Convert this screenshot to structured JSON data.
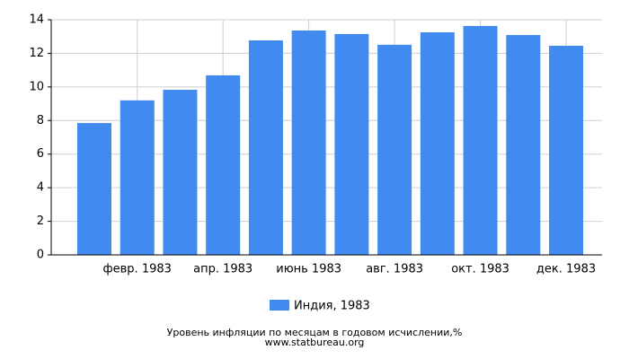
{
  "chart_data": {
    "type": "bar",
    "title": "Уровень инфляции по месяцам в годовом исчислении,%",
    "source": "www.statbureau.org",
    "categories": [
      null,
      "февр. 1983",
      null,
      "апр. 1983",
      null,
      "июнь 1983",
      null,
      "авг. 1983",
      null,
      "окт. 1983",
      null,
      "дек. 1983"
    ],
    "series": [
      {
        "name": "Индия, 1983",
        "color": "#418bf0",
        "values": [
          7.85,
          9.2,
          9.83,
          10.69,
          12.77,
          13.36,
          13.15,
          12.51,
          13.25,
          13.63,
          13.09,
          12.45
        ]
      }
    ],
    "ylim": [
      0,
      14
    ],
    "yticks": [
      0,
      2,
      4,
      6,
      8,
      10,
      12,
      14
    ],
    "grid": true
  }
}
